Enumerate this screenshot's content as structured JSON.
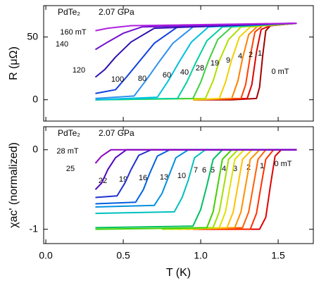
{
  "chart_data": [
    {
      "type": "line",
      "ylabel": "R (μΩ)",
      "annotations": [
        {
          "text": "PdTe₂",
          "color": "#000000"
        },
        {
          "text": "2.07 GPa",
          "color": "#2020d0"
        }
      ],
      "xlim": [
        -0.014,
        1.727
      ],
      "xticks": [
        0,
        0.5,
        1,
        1.5
      ],
      "ylim": [
        -17,
        75
      ],
      "yticks": [
        0,
        50
      ],
      "series": [
        {
          "name": "0 mT",
          "color": "#a00000",
          "x": [
            0.95,
            1.2,
            1.36,
            1.38,
            1.4,
            1.42,
            1.45,
            1.62
          ],
          "values": [
            0,
            0,
            1,
            10,
            35,
            55,
            59,
            61
          ]
        },
        {
          "name": "1",
          "color": "#e00000",
          "x": [
            0.95,
            1.0,
            1.3,
            1.33,
            1.36,
            1.39,
            1.45,
            1.62
          ],
          "values": [
            0,
            0,
            1,
            12,
            38,
            56,
            59,
            61
          ]
        },
        {
          "name": "2",
          "color": "#ff4000",
          "x": [
            0.95,
            1.26,
            1.29,
            1.32,
            1.35,
            1.4,
            1.62
          ],
          "values": [
            0,
            1,
            12,
            35,
            54,
            59,
            61
          ]
        },
        {
          "name": "4",
          "color": "#ff8000",
          "x": [
            0.95,
            1.2,
            1.24,
            1.27,
            1.31,
            1.37,
            1.62
          ],
          "values": [
            0,
            1,
            15,
            33,
            52,
            59,
            61
          ]
        },
        {
          "name": "9",
          "color": "#f0d000",
          "x": [
            0.95,
            1.12,
            1.16,
            1.2,
            1.25,
            1.32,
            1.62
          ],
          "values": [
            0,
            1,
            14,
            32,
            50,
            58,
            61
          ]
        },
        {
          "name": "19",
          "color": "#b0e000",
          "x": [
            0.32,
            1.03,
            1.08,
            1.12,
            1.18,
            1.26,
            1.62
          ],
          "values": [
            0,
            1,
            15,
            31,
            48,
            58,
            61
          ]
        },
        {
          "name": "28",
          "color": "#40d040",
          "x": [
            0.32,
            0.95,
            1.0,
            1.05,
            1.11,
            1.2,
            1.62
          ],
          "values": [
            0,
            1,
            14,
            31,
            48,
            58,
            61
          ]
        },
        {
          "name": "40",
          "color": "#00d0a0",
          "x": [
            0.32,
            0.85,
            0.91,
            0.97,
            1.04,
            1.14,
            1.62
          ],
          "values": [
            0,
            1,
            14,
            30,
            47,
            58,
            61
          ]
        },
        {
          "name": "60",
          "color": "#00c0e0",
          "x": [
            0.32,
            0.72,
            0.79,
            0.86,
            0.94,
            1.05,
            1.62
          ],
          "values": [
            0,
            2,
            15,
            30,
            46,
            58,
            61
          ]
        },
        {
          "name": "80",
          "color": "#3090f0",
          "x": [
            0.32,
            0.57,
            0.65,
            0.73,
            0.82,
            0.95,
            1.62
          ],
          "values": [
            1,
            3,
            16,
            30,
            45,
            58,
            61
          ]
        },
        {
          "name": "100",
          "color": "#1040e0",
          "x": [
            0.32,
            0.45,
            0.52,
            0.6,
            0.7,
            0.85,
            1.62
          ],
          "values": [
            5,
            8,
            18,
            30,
            45,
            58,
            61
          ]
        },
        {
          "name": "120",
          "color": "#3010b0",
          "x": [
            0.32,
            0.38,
            0.45,
            0.55,
            0.7,
            1.62
          ],
          "values": [
            18,
            24,
            34,
            46,
            57,
            61
          ]
        },
        {
          "name": "140",
          "color": "#7010d0",
          "x": [
            0.32,
            0.4,
            0.5,
            0.62,
            1.62
          ],
          "values": [
            40,
            46,
            53,
            58,
            61
          ]
        },
        {
          "name": "160 mT",
          "color": "#b020e0",
          "x": [
            0.32,
            0.4,
            0.55,
            1.62
          ],
          "values": [
            55,
            57,
            59,
            61
          ]
        }
      ]
    },
    {
      "type": "line",
      "ylabel": "χac' (normalized)",
      "xlabel": "T (K)",
      "annotations": [
        {
          "text": "PdTe₂",
          "color": "#000000"
        },
        {
          "text": "2.07 GPa",
          "color": "#2020d0"
        }
      ],
      "xlim": [
        -0.014,
        1.727
      ],
      "xticks": [
        {
          "value": 0,
          "label": "0.0"
        },
        0.5,
        {
          "value": 1,
          "label": "1.0"
        },
        1.5
      ],
      "ylim": [
        -1.18,
        0.29
      ],
      "yticks": [
        -1,
        0
      ],
      "series": [
        {
          "name": "0 mT",
          "color": "#e00000",
          "x": [
            0.95,
            1.38,
            1.42,
            1.45,
            1.48,
            1.52
          ],
          "values": [
            -1,
            -1,
            -0.85,
            -0.45,
            -0.08,
            0
          ]
        },
        {
          "name": "1",
          "color": "#ff3000",
          "x": [
            1.0,
            1.32,
            1.36,
            1.39,
            1.42,
            1.47,
            1.62
          ],
          "values": [
            -1,
            -1,
            -0.8,
            -0.45,
            -0.12,
            0,
            0
          ]
        },
        {
          "name": "2",
          "color": "#ff6000",
          "x": [
            0.95,
            1.27,
            1.31,
            1.34,
            1.37,
            1.42,
            1.62
          ],
          "values": [
            -1,
            -0.98,
            -0.78,
            -0.45,
            -0.12,
            0,
            0
          ]
        },
        {
          "name": "3",
          "color": "#ff9000",
          "x": [
            0.9,
            1.22,
            1.26,
            1.29,
            1.32,
            1.38,
            1.62
          ],
          "values": [
            -1,
            -0.98,
            -0.78,
            -0.45,
            -0.12,
            0,
            0
          ]
        },
        {
          "name": "4",
          "color": "#ffc000",
          "x": [
            0.85,
            1.17,
            1.21,
            1.24,
            1.27,
            1.33,
            1.62
          ],
          "values": [
            -1,
            -0.98,
            -0.78,
            -0.45,
            -0.12,
            0,
            0
          ]
        },
        {
          "name": "5",
          "color": "#e0e000",
          "x": [
            0.8,
            1.12,
            1.16,
            1.19,
            1.22,
            1.28,
            1.62
          ],
          "values": [
            -1,
            -0.98,
            -0.78,
            -0.45,
            -0.12,
            0,
            0
          ]
        },
        {
          "name": "6",
          "color": "#a0e000",
          "x": [
            0.75,
            1.08,
            1.12,
            1.15,
            1.18,
            1.24,
            1.62
          ],
          "values": [
            -1,
            -0.98,
            -0.78,
            -0.45,
            -0.12,
            0,
            0
          ]
        },
        {
          "name": "7",
          "color": "#40d000",
          "x": [
            0.32,
            1.04,
            1.08,
            1.11,
            1.14,
            1.2,
            1.62
          ],
          "values": [
            -1,
            -0.98,
            -0.78,
            -0.45,
            -0.12,
            0,
            0
          ]
        },
        {
          "name": "10",
          "color": "#00c060",
          "x": [
            0.32,
            0.95,
            1.0,
            1.04,
            1.08,
            1.14,
            1.62
          ],
          "values": [
            -0.98,
            -0.96,
            -0.75,
            -0.45,
            -0.12,
            0,
            0
          ]
        },
        {
          "name": "13",
          "color": "#00c0c0",
          "x": [
            0.32,
            0.83,
            0.88,
            0.92,
            0.96,
            1.03,
            1.62
          ],
          "values": [
            -0.8,
            -0.78,
            -0.6,
            -0.38,
            -0.1,
            0,
            0
          ]
        },
        {
          "name": "16",
          "color": "#0090e0",
          "x": [
            0.32,
            0.7,
            0.75,
            0.79,
            0.84,
            0.92,
            1.62
          ],
          "values": [
            -0.72,
            -0.7,
            -0.55,
            -0.35,
            -0.1,
            0,
            0
          ]
        },
        {
          "name": "19",
          "color": "#0060e0",
          "x": [
            0.32,
            0.58,
            0.63,
            0.67,
            0.72,
            0.8,
            1.62
          ],
          "values": [
            -0.68,
            -0.66,
            -0.5,
            -0.3,
            -0.08,
            0,
            0
          ]
        },
        {
          "name": "22",
          "color": "#2030d0",
          "x": [
            0.32,
            0.46,
            0.51,
            0.55,
            0.6,
            0.68,
            1.62
          ],
          "values": [
            -0.6,
            -0.58,
            -0.42,
            -0.25,
            -0.07,
            0,
            0
          ]
        },
        {
          "name": "25",
          "color": "#5000c0",
          "x": [
            0.32,
            0.36,
            0.4,
            0.45,
            0.52,
            1.62
          ],
          "values": [
            -0.5,
            -0.42,
            -0.25,
            -0.1,
            0,
            0
          ]
        },
        {
          "name": "28 mT",
          "color": "#9000c0",
          "x": [
            0.32,
            0.36,
            0.42,
            1.62
          ],
          "values": [
            -0.17,
            -0.08,
            0,
            0
          ]
        }
      ]
    }
  ]
}
